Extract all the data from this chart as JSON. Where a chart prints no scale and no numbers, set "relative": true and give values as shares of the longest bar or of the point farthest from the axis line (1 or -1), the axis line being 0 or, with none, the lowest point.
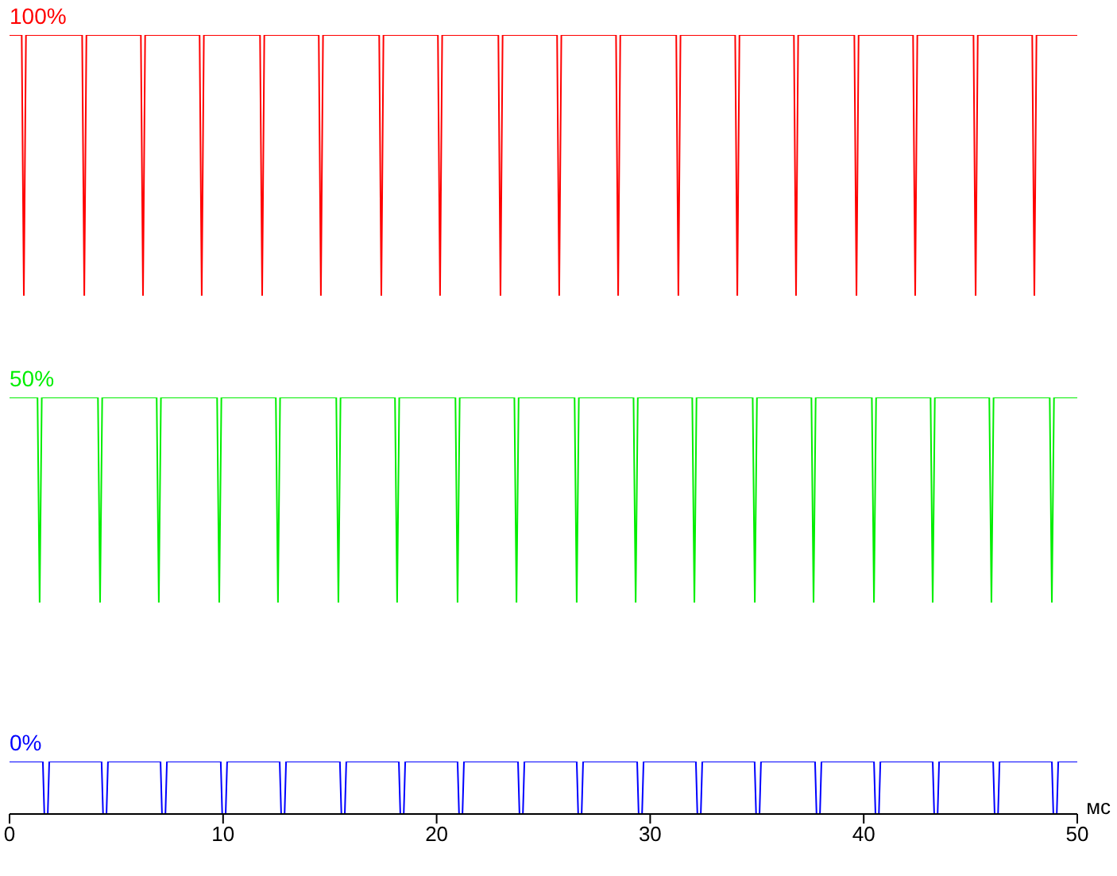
{
  "chart_data": [
    {
      "type": "line",
      "title": "100%",
      "relative": true,
      "xlim": [
        0,
        50
      ],
      "tick_labels": false,
      "series": [
        {
          "color": "#ff0000",
          "x": [
            0,
            0.57,
            0.67,
            0.77,
            3.4,
            3.5,
            3.6,
            6.15,
            6.25,
            6.35,
            8.9,
            9.0,
            9.1,
            11.73,
            11.83,
            11.93,
            14.48,
            14.58,
            14.68,
            17.31,
            17.41,
            17.51,
            20.06,
            20.16,
            20.26,
            22.89,
            22.99,
            23.09,
            25.64,
            25.74,
            25.84,
            28.4,
            28.5,
            28.6,
            31.22,
            31.32,
            31.42,
            33.98,
            34.08,
            34.18,
            36.73,
            36.83,
            36.93,
            39.56,
            39.66,
            39.76,
            42.31,
            42.41,
            42.51,
            45.14,
            45.24,
            45.34,
            47.89,
            47.99,
            48.09,
            50
          ],
          "values": [
            1,
            1,
            0,
            1,
            1,
            0,
            1,
            1,
            0,
            1,
            1,
            0,
            1,
            1,
            0,
            1,
            1,
            0,
            1,
            1,
            0,
            1,
            1,
            0,
            1,
            1,
            0,
            1,
            1,
            0,
            1,
            1,
            0,
            1,
            1,
            0,
            1,
            1,
            0,
            1,
            1,
            0,
            1,
            1,
            0,
            1,
            1,
            0,
            1,
            1,
            0,
            1,
            1,
            0,
            1,
            1
          ]
        }
      ]
    },
    {
      "type": "line",
      "title": "50%",
      "relative": true,
      "xlim": [
        0,
        50
      ],
      "tick_labels": false,
      "series": [
        {
          "color": "#00ee00",
          "x": [
            0,
            1.31,
            1.41,
            1.51,
            4.14,
            4.24,
            4.34,
            6.89,
            6.99,
            7.09,
            9.72,
            9.82,
            9.92,
            12.47,
            12.57,
            12.67,
            15.3,
            15.4,
            15.5,
            18.05,
            18.15,
            18.25,
            20.88,
            20.98,
            21.08,
            23.64,
            23.74,
            23.84,
            26.46,
            26.56,
            26.66,
            29.22,
            29.32,
            29.42,
            31.97,
            32.07,
            32.17,
            34.8,
            34.9,
            35.0,
            37.55,
            37.65,
            37.75,
            40.38,
            40.48,
            40.58,
            43.13,
            43.23,
            43.33,
            45.88,
            45.98,
            46.08,
            48.71,
            48.81,
            48.91,
            50
          ],
          "values": [
            1,
            1,
            0,
            1,
            1,
            0,
            1,
            1,
            0,
            1,
            1,
            0,
            1,
            1,
            0,
            1,
            1,
            0,
            1,
            1,
            0,
            1,
            1,
            0,
            1,
            1,
            0,
            1,
            1,
            0,
            1,
            1,
            0,
            1,
            1,
            0,
            1,
            1,
            0,
            1,
            1,
            0,
            1,
            1,
            0,
            1,
            1,
            0,
            1,
            1,
            0,
            1,
            1,
            0,
            1,
            1
          ]
        }
      ]
    },
    {
      "type": "line",
      "title": "0%",
      "relative": true,
      "xlim": [
        0,
        50
      ],
      "xticks": [
        0,
        10,
        20,
        30,
        40,
        50
      ],
      "xlabel": "мс",
      "tick_labels": "x",
      "series": [
        {
          "color": "#0000ff",
          "x": [
            0,
            1.56,
            1.63,
            1.79,
            1.86,
            4.31,
            4.38,
            4.54,
            4.61,
            7.07,
            7.14,
            7.3,
            7.37,
            9.89,
            9.96,
            10.12,
            10.19,
            12.65,
            12.72,
            12.88,
            12.95,
            15.47,
            15.54,
            15.7,
            15.77,
            18.23,
            18.3,
            18.46,
            18.53,
            20.98,
            21.05,
            21.21,
            21.28,
            23.81,
            23.88,
            24.04,
            24.11,
            26.56,
            26.63,
            26.79,
            26.86,
            29.39,
            29.46,
            29.62,
            29.69,
            32.14,
            32.21,
            32.37,
            32.44,
            34.89,
            34.96,
            35.12,
            35.19,
            37.72,
            37.79,
            37.95,
            38.02,
            40.48,
            40.55,
            40.71,
            40.78,
            43.23,
            43.3,
            43.46,
            43.53,
            46.06,
            46.13,
            46.29,
            46.36,
            48.81,
            48.88,
            49.04,
            49.11,
            50
          ],
          "values": [
            1,
            1,
            0,
            0,
            1,
            1,
            0,
            0,
            1,
            1,
            0,
            0,
            1,
            1,
            0,
            0,
            1,
            1,
            0,
            0,
            1,
            1,
            0,
            0,
            1,
            1,
            0,
            0,
            1,
            1,
            0,
            0,
            1,
            1,
            0,
            0,
            1,
            1,
            0,
            0,
            1,
            1,
            0,
            0,
            1,
            1,
            0,
            0,
            1,
            1,
            0,
            0,
            1,
            1,
            0,
            0,
            1,
            1,
            0,
            0,
            1,
            1,
            0,
            0,
            1,
            1,
            0,
            0,
            1,
            1,
            0,
            0,
            1,
            1
          ]
        }
      ]
    }
  ]
}
